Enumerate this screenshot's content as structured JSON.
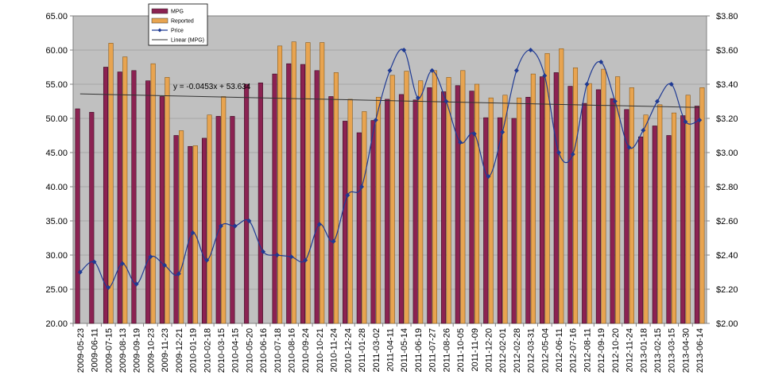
{
  "chart_data": {
    "type": "bar",
    "categories": [
      "2009-05-23",
      "2009-06-11",
      "2009-07-15",
      "2009-08-13",
      "2009-09-19",
      "2009-10-23",
      "2009-11-23",
      "2009-12-21",
      "2010-01-19",
      "2010-02-18",
      "2010-03-15",
      "2010-04-15",
      "2010-05-20",
      "2010-06-16",
      "2010-07-18",
      "2010-08-16",
      "2010-09-24",
      "2010-10-21",
      "2010-11-24",
      "2010-12-24",
      "2011-01-28",
      "2011-03-02",
      "2011-04-11",
      "2011-05-14",
      "2011-06-19",
      "2011-07-27",
      "2011-08-26",
      "2011-10-05",
      "2011-11-09",
      "2011-12-20",
      "2012-02-01",
      "2012-02-28",
      "2012-03-31",
      "2012-05-04",
      "2012-06-11",
      "2012-07-16",
      "2012-08-11",
      "2012-09-19",
      "2012-10-20",
      "2012-11-24",
      "2013-01-18",
      "2013-02-15",
      "2013-03-15",
      "2013-04-30",
      "2013-06-14"
    ],
    "series": [
      {
        "name": "MPG",
        "axis": "left",
        "type": "bar",
        "color": "#8B2252",
        "values": [
          51.4,
          50.9,
          57.5,
          56.8,
          57.0,
          55.5,
          53.2,
          47.5,
          45.9,
          47.1,
          50.3,
          50.3,
          55.0,
          55.2,
          56.5,
          58.0,
          57.9,
          57.0,
          53.2,
          49.6,
          47.9,
          49.7,
          52.8,
          53.5,
          52.7,
          54.5,
          53.9,
          54.8,
          54.0,
          50.1,
          50.1,
          50.0,
          53.1,
          56.1,
          56.7,
          54.7,
          52.2,
          54.2,
          52.9,
          51.3,
          47.3,
          48.9,
          47.5,
          50.4,
          51.8
        ]
      },
      {
        "name": "Reported",
        "axis": "left",
        "type": "bar",
        "color": "#E8A450",
        "values": [
          null,
          null,
          61.0,
          59.0,
          null,
          58.0,
          56.0,
          48.2,
          46.0,
          50.5,
          53.2,
          null,
          null,
          null,
          60.6,
          61.2,
          61.1,
          61.1,
          56.7,
          52.8,
          51.0,
          53.1,
          56.3,
          56.9,
          55.5,
          57.0,
          56.0,
          57.0,
          55.0,
          53.0,
          53.4,
          53.0,
          56.5,
          59.5,
          60.2,
          57.4,
          55.1,
          57.2,
          56.1,
          54.5,
          50.5,
          52.0,
          50.8,
          53.4,
          54.5
        ]
      },
      {
        "name": "Price",
        "axis": "right",
        "type": "line",
        "color": "#1F3A93",
        "values": [
          2.3,
          2.36,
          2.21,
          2.35,
          2.23,
          2.39,
          2.34,
          2.29,
          2.53,
          2.37,
          2.57,
          2.57,
          2.6,
          2.42,
          2.4,
          2.39,
          2.37,
          2.58,
          2.48,
          2.75,
          2.8,
          3.19,
          3.48,
          3.6,
          3.32,
          3.48,
          3.3,
          3.06,
          3.11,
          2.86,
          3.12,
          3.48,
          3.6,
          3.45,
          3.0,
          2.99,
          3.4,
          3.53,
          3.3,
          3.03,
          3.13,
          3.3,
          3.4,
          3.18,
          3.19
        ]
      },
      {
        "name": "Linear (MPG)",
        "type": "trendline",
        "color": "#333333",
        "slope": -0.0453,
        "intercept": 53.634
      }
    ],
    "trend_label": "y = -0.0453x + 53.634",
    "ylim_left": [
      20,
      65
    ],
    "yticks_left": [
      "20.00",
      "25.00",
      "30.00",
      "35.00",
      "40.00",
      "45.00",
      "50.00",
      "55.00",
      "60.00",
      "65.00"
    ],
    "ylim_right": [
      2.0,
      3.8
    ],
    "yticks_right": [
      "$2.00",
      "$2.20",
      "$2.40",
      "$2.60",
      "$2.80",
      "$3.00",
      "$3.20",
      "$3.40",
      "$3.60",
      "$3.80"
    ],
    "grid": true,
    "legend_position": "top-left",
    "plot_background": "#C0C0C0"
  }
}
